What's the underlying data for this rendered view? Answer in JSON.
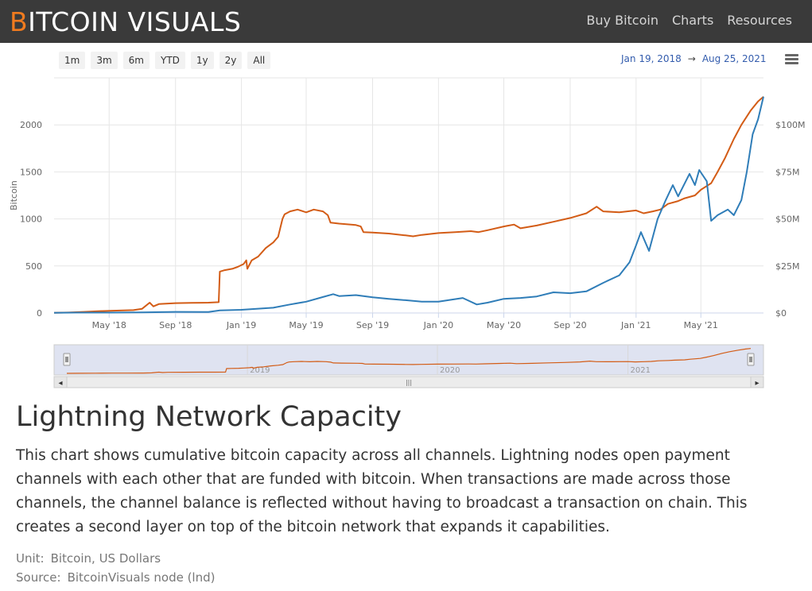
{
  "header": {
    "logo_first": "B",
    "logo_rest": "ITCOIN VISUALS",
    "nav": [
      "Buy Bitcoin",
      "Charts",
      "Resources"
    ]
  },
  "range_selector": {
    "buttons": [
      "1m",
      "3m",
      "6m",
      "YTD",
      "1y",
      "2y",
      "All"
    ],
    "from": "Jan 19, 2018",
    "arrow": "→",
    "to": "Aug 25, 2021"
  },
  "colors": {
    "btc_series": "#d35c16",
    "usd_series": "#2f7db8",
    "grid": "#e6e6e6",
    "navigator_mask": "#dfe3f1"
  },
  "chart_data": {
    "type": "line",
    "x_axis": {
      "type": "date",
      "range": [
        "2018-01-19",
        "2021-08-25"
      ],
      "tick_labels": [
        "May '18",
        "Sep '18",
        "Jan '19",
        "May '19",
        "Sep '19",
        "Jan '20",
        "May '20",
        "Sep '20",
        "Jan '21",
        "May '21"
      ],
      "tick_dates": [
        "2018-05-01",
        "2018-09-01",
        "2019-01-01",
        "2019-05-01",
        "2019-09-01",
        "2020-01-01",
        "2020-05-01",
        "2020-09-01",
        "2021-01-01",
        "2021-05-01"
      ]
    },
    "y_axis_left": {
      "title": "Bitcoin",
      "range": [
        0,
        2500
      ],
      "tick_values": [
        0,
        500,
        1000,
        1500,
        2000
      ],
      "tick_labels": [
        "0",
        "500",
        "1000",
        "1500",
        "2000"
      ]
    },
    "y_axis_right": {
      "range": [
        0,
        125
      ],
      "unit": "USD millions",
      "tick_values": [
        0,
        25,
        50,
        75,
        100
      ],
      "tick_labels": [
        "$0",
        "$25M",
        "$50M",
        "$75M",
        "$100M"
      ]
    },
    "grid": true,
    "legend": "none",
    "series": [
      {
        "axis": "left",
        "color": "#d35c16",
        "points": [
          [
            "2018-01-19",
            2
          ],
          [
            "2018-02-15",
            5
          ],
          [
            "2018-03-15",
            12
          ],
          [
            "2018-04-15",
            20
          ],
          [
            "2018-05-15",
            25
          ],
          [
            "2018-06-15",
            30
          ],
          [
            "2018-07-01",
            45
          ],
          [
            "2018-07-15",
            110
          ],
          [
            "2018-07-22",
            70
          ],
          [
            "2018-08-01",
            95
          ],
          [
            "2018-09-01",
            105
          ],
          [
            "2018-10-01",
            108
          ],
          [
            "2018-11-01",
            110
          ],
          [
            "2018-11-20",
            115
          ],
          [
            "2018-11-22",
            440
          ],
          [
            "2018-12-01",
            455
          ],
          [
            "2018-12-15",
            470
          ],
          [
            "2018-12-25",
            490
          ],
          [
            "2019-01-05",
            520
          ],
          [
            "2019-01-10",
            560
          ],
          [
            "2019-01-12",
            470
          ],
          [
            "2019-01-20",
            560
          ],
          [
            "2019-02-01",
            600
          ],
          [
            "2019-02-15",
            690
          ],
          [
            "2019-03-01",
            750
          ],
          [
            "2019-03-10",
            810
          ],
          [
            "2019-03-18",
            1000
          ],
          [
            "2019-03-22",
            1050
          ],
          [
            "2019-04-01",
            1080
          ],
          [
            "2019-04-15",
            1100
          ],
          [
            "2019-05-01",
            1070
          ],
          [
            "2019-05-15",
            1100
          ],
          [
            "2019-06-01",
            1080
          ],
          [
            "2019-06-10",
            1040
          ],
          [
            "2019-06-15",
            960
          ],
          [
            "2019-07-01",
            950
          ],
          [
            "2019-08-01",
            935
          ],
          [
            "2019-08-10",
            920
          ],
          [
            "2019-08-15",
            860
          ],
          [
            "2019-09-01",
            855
          ],
          [
            "2019-10-01",
            845
          ],
          [
            "2019-11-01",
            825
          ],
          [
            "2019-11-15",
            815
          ],
          [
            "2019-12-01",
            830
          ],
          [
            "2020-01-01",
            850
          ],
          [
            "2020-02-01",
            860
          ],
          [
            "2020-03-01",
            870
          ],
          [
            "2020-03-15",
            860
          ],
          [
            "2020-04-01",
            880
          ],
          [
            "2020-05-01",
            920
          ],
          [
            "2020-05-20",
            940
          ],
          [
            "2020-06-01",
            900
          ],
          [
            "2020-07-01",
            930
          ],
          [
            "2020-08-01",
            970
          ],
          [
            "2020-09-01",
            1010
          ],
          [
            "2020-10-01",
            1060
          ],
          [
            "2020-10-20",
            1130
          ],
          [
            "2020-11-01",
            1080
          ],
          [
            "2020-12-01",
            1070
          ],
          [
            "2021-01-01",
            1090
          ],
          [
            "2021-01-15",
            1060
          ],
          [
            "2021-02-01",
            1080
          ],
          [
            "2021-02-15",
            1100
          ],
          [
            "2021-03-01",
            1160
          ],
          [
            "2021-03-20",
            1190
          ],
          [
            "2021-04-01",
            1220
          ],
          [
            "2021-04-20",
            1250
          ],
          [
            "2021-05-01",
            1310
          ],
          [
            "2021-05-20",
            1380
          ],
          [
            "2021-06-01",
            1500
          ],
          [
            "2021-06-15",
            1650
          ],
          [
            "2021-07-01",
            1850
          ],
          [
            "2021-07-15",
            2000
          ],
          [
            "2021-08-01",
            2150
          ],
          [
            "2021-08-15",
            2250
          ],
          [
            "2021-08-25",
            2300
          ]
        ]
      },
      {
        "axis": "right",
        "color": "#2f7db8",
        "points": [
          [
            "2018-01-19",
            0.1
          ],
          [
            "2018-03-01",
            0.2
          ],
          [
            "2018-05-01",
            0.2
          ],
          [
            "2018-07-01",
            0.3
          ],
          [
            "2018-09-01",
            0.6
          ],
          [
            "2018-11-01",
            0.5
          ],
          [
            "2018-11-22",
            1.4
          ],
          [
            "2019-01-01",
            1.7
          ],
          [
            "2019-03-01",
            2.8
          ],
          [
            "2019-04-01",
            4.5
          ],
          [
            "2019-05-01",
            6.0
          ],
          [
            "2019-06-01",
            8.5
          ],
          [
            "2019-06-20",
            10.0
          ],
          [
            "2019-07-01",
            9.0
          ],
          [
            "2019-08-01",
            9.5
          ],
          [
            "2019-09-01",
            8.3
          ],
          [
            "2019-10-01",
            7.5
          ],
          [
            "2019-11-01",
            6.8
          ],
          [
            "2019-12-01",
            6.0
          ],
          [
            "2020-01-01",
            6.0
          ],
          [
            "2020-02-15",
            8.0
          ],
          [
            "2020-03-12",
            4.5
          ],
          [
            "2020-04-01",
            5.5
          ],
          [
            "2020-05-01",
            7.5
          ],
          [
            "2020-06-01",
            8.0
          ],
          [
            "2020-07-01",
            8.8
          ],
          [
            "2020-08-01",
            11.0
          ],
          [
            "2020-09-01",
            10.5
          ],
          [
            "2020-10-01",
            11.5
          ],
          [
            "2020-11-01",
            16.0
          ],
          [
            "2020-12-01",
            20.0
          ],
          [
            "2020-12-20",
            27.0
          ],
          [
            "2021-01-01",
            36.0
          ],
          [
            "2021-01-10",
            43.0
          ],
          [
            "2021-01-25",
            33.0
          ],
          [
            "2021-02-10",
            50.0
          ],
          [
            "2021-02-25",
            60.0
          ],
          [
            "2021-03-10",
            68.0
          ],
          [
            "2021-03-20",
            62.0
          ],
          [
            "2021-04-10",
            74.0
          ],
          [
            "2021-04-20",
            68.0
          ],
          [
            "2021-04-28",
            76.0
          ],
          [
            "2021-05-12",
            70.0
          ],
          [
            "2021-05-20",
            49.0
          ],
          [
            "2021-06-01",
            52.0
          ],
          [
            "2021-06-20",
            55.0
          ],
          [
            "2021-07-01",
            52.0
          ],
          [
            "2021-07-15",
            60.0
          ],
          [
            "2021-07-25",
            75.0
          ],
          [
            "2021-08-05",
            95.0
          ],
          [
            "2021-08-15",
            103.0
          ],
          [
            "2021-08-25",
            115.0
          ]
        ]
      }
    ],
    "navigator": {
      "tick_labels": [
        "2019",
        "2020",
        "2021"
      ],
      "tick_dates": [
        "2019-01-01",
        "2020-01-01",
        "2021-01-01"
      ],
      "scroll_left": "◂",
      "scroll_right": "▸",
      "scroll_grip": "|||"
    }
  },
  "content": {
    "title": "Lightning Network Capacity",
    "description": "This chart shows cumulative bitcoin capacity across all channels. Lightning nodes open payment channels with each other that are funded with bitcoin. When transactions are made across those channels, the channel balance is reflected without having to broadcast a transaction on chain. This creates a second layer on top of the bitcoin network that expands it capabilities.",
    "unit_label": "Unit:",
    "unit_value": "Bitcoin, US Dollars",
    "source_label": "Source:",
    "source_value": "BitcoinVisuals node (lnd)"
  }
}
